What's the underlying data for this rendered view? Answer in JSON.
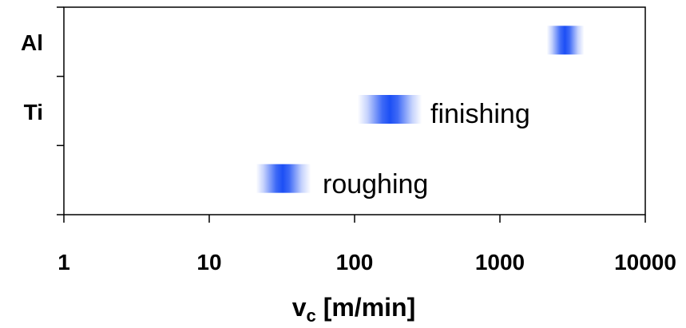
{
  "chart_data": {
    "type": "range",
    "x_scale": "log",
    "xlim": [
      1,
      10000
    ],
    "x_ticks": [
      "1",
      "10",
      "100",
      "1000",
      "10000"
    ],
    "x_label_main": "v",
    "x_label_sub": "c",
    "x_label_rest": " [m/min]",
    "row_labels": [
      "Al",
      "Ti",
      ""
    ],
    "bars": [
      {
        "row": "Al",
        "from": 2100,
        "to": 3800,
        "center": 2800
      },
      {
        "row": "Ti",
        "from": 105,
        "to": 290,
        "center": 175,
        "label": "finishing"
      },
      {
        "row": "",
        "from": 21,
        "to": 50,
        "center": 32,
        "label": "roughing"
      }
    ],
    "bar_color": "#1c4ff5",
    "grid": false
  }
}
